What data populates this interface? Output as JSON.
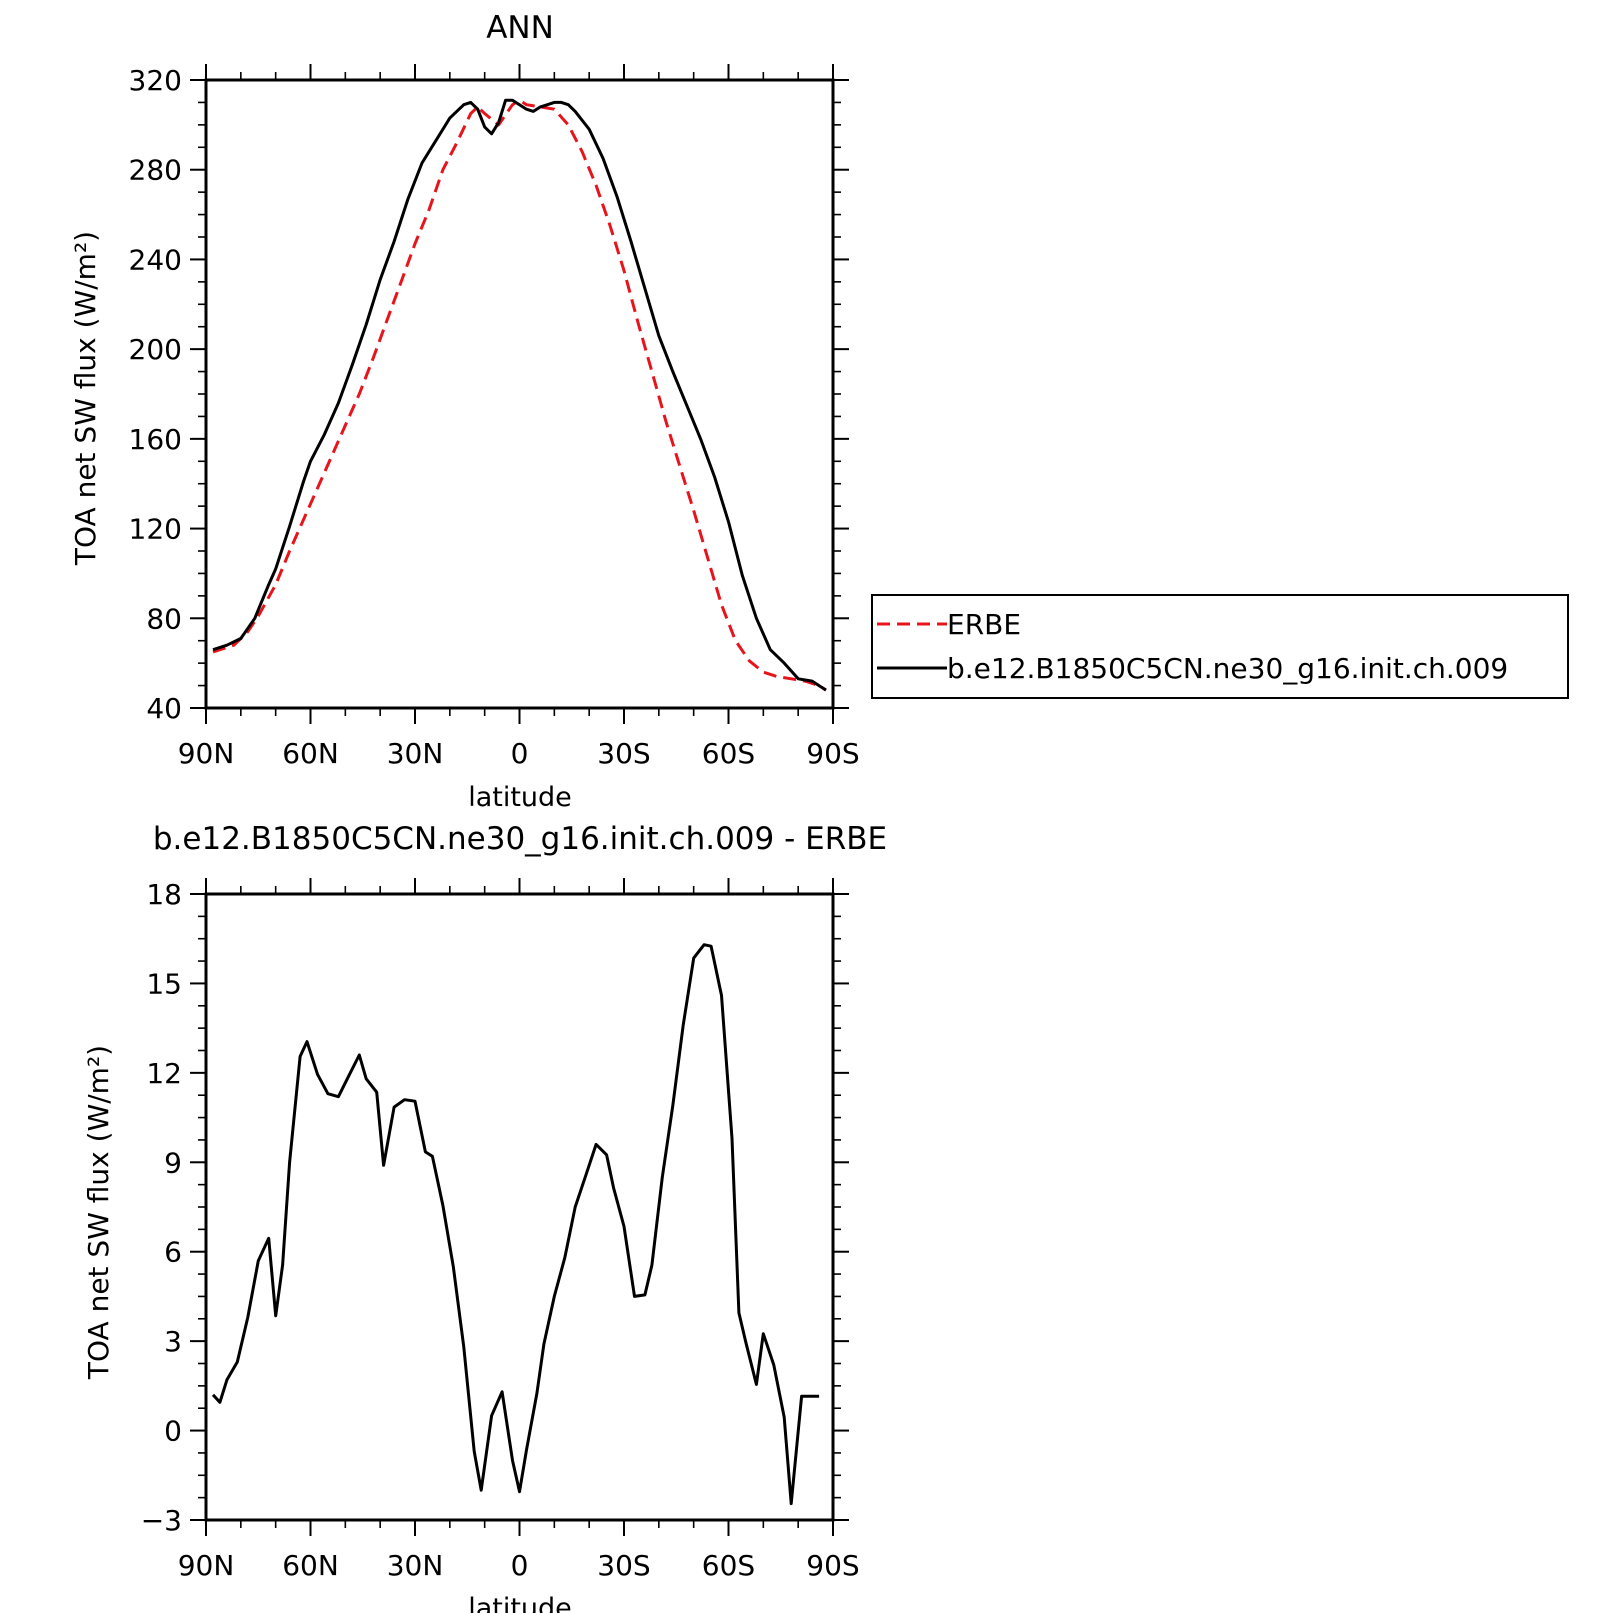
{
  "chart_data": [
    {
      "type": "line",
      "title": "ANN",
      "xlabel": "latitude",
      "ylabel": "TOA net SW flux (W/m²)",
      "xlim": [
        90,
        -90
      ],
      "ylim": [
        40,
        320
      ],
      "x_tick_values": [
        90,
        60,
        30,
        0,
        -30,
        -60,
        -90
      ],
      "x_tick_labels": [
        "90N",
        "60N",
        "30N",
        "0",
        "30S",
        "60S",
        "90S"
      ],
      "y_ticks": [
        40,
        80,
        120,
        160,
        200,
        240,
        280,
        320
      ],
      "legend": {
        "position": "right",
        "entries": [
          "ERBE",
          "b.e12.B1850C5CN.ne30_g16.init.ch.009"
        ]
      },
      "series": [
        {
          "name": "ERBE",
          "color": "#e8141c",
          "dash": "dashed",
          "x": [
            88,
            82,
            78,
            75,
            70,
            66,
            62,
            58,
            54,
            50,
            46,
            42,
            38,
            34,
            30,
            26,
            22,
            18,
            14,
            12,
            10,
            6,
            2,
            0,
            -2,
            -6,
            -10,
            -14,
            -18,
            -22,
            -26,
            -30,
            -34,
            -38,
            -42,
            -46,
            -50,
            -54,
            -58,
            -62,
            -66,
            -70,
            -74,
            -78,
            -82,
            -86,
            -88
          ],
          "y": [
            65,
            68,
            74,
            81,
            95,
            110,
            124,
            138,
            152,
            166,
            180,
            196,
            213,
            230,
            247,
            262,
            280,
            292,
            305,
            308,
            305,
            300,
            309,
            311,
            309,
            308,
            307,
            300,
            288,
            273,
            255,
            235,
            212,
            190,
            168,
            148,
            128,
            107,
            86,
            70,
            61,
            56,
            54,
            53,
            52,
            50,
            48
          ]
        },
        {
          "name": "b.e12.B1850C5CN.ne30_g16.init.ch.009",
          "color": "#000000",
          "dash": "solid",
          "x": [
            88,
            84,
            80,
            76,
            72,
            70,
            66,
            62,
            60,
            56,
            52,
            48,
            44,
            40,
            36,
            32,
            28,
            24,
            20,
            16,
            14,
            12,
            10,
            8,
            6,
            4,
            2,
            0,
            -2,
            -4,
            -6,
            -8,
            -10,
            -12,
            -14,
            -16,
            -20,
            -24,
            -28,
            -32,
            -36,
            -40,
            -44,
            -48,
            -52,
            -56,
            -60,
            -64,
            -68,
            -72,
            -76,
            -80,
            -84,
            -88
          ],
          "y": [
            66,
            68,
            71,
            80,
            95,
            102,
            121,
            141,
            150,
            162,
            176,
            193,
            211,
            231,
            248,
            267,
            283,
            293,
            303,
            309,
            310,
            307,
            299,
            296,
            301,
            311,
            311,
            309,
            307,
            306,
            308,
            309,
            310,
            310,
            309,
            306,
            298,
            285,
            268,
            248,
            227,
            206,
            190,
            175,
            160,
            143,
            123,
            99,
            80,
            66,
            60,
            53,
            52,
            48
          ]
        }
      ]
    },
    {
      "type": "line",
      "title": "b.e12.B1850C5CN.ne30_g16.init.ch.009 - ERBE",
      "xlabel": "latitude",
      "ylabel": "TOA net SW flux (W/m²)",
      "xlim": [
        90,
        -90
      ],
      "ylim": [
        -3,
        18
      ],
      "x_tick_values": [
        90,
        60,
        30,
        0,
        -30,
        -60,
        -90
      ],
      "x_tick_labels": [
        "90N",
        "60N",
        "30N",
        "0",
        "30S",
        "60S",
        "90S"
      ],
      "y_ticks": [
        -3,
        0,
        3,
        6,
        9,
        12,
        15,
        18
      ],
      "y_tick_labels": [
        "−3",
        "0",
        "3",
        "6",
        "9",
        "12",
        "15",
        "18"
      ],
      "series": [
        {
          "color": "#000000",
          "dash": "solid",
          "x": [
            88,
            86,
            84,
            81,
            78,
            75,
            72,
            70,
            68,
            66,
            63,
            61,
            58,
            55,
            52,
            49,
            46,
            44,
            41,
            39,
            36,
            33,
            30,
            27,
            25,
            22,
            19,
            16,
            13,
            11,
            8,
            5,
            2,
            0,
            -2,
            -5,
            -7,
            -10,
            -13,
            -16,
            -19,
            -22,
            -25,
            -27,
            -30,
            -33,
            -36,
            -38,
            -41,
            -44,
            -47,
            -50,
            -53,
            -55,
            -58,
            -61,
            -63,
            -65,
            -68,
            -70,
            -73,
            -76,
            -78,
            -81,
            -84,
            -86
          ],
          "y": [
            1.2,
            0.95,
            1.7,
            2.3,
            3.8,
            5.7,
            6.45,
            3.85,
            5.55,
            9.0,
            12.55,
            13.05,
            11.95,
            11.3,
            11.2,
            11.9,
            12.6,
            11.8,
            11.35,
            8.9,
            10.85,
            11.1,
            11.05,
            9.35,
            9.2,
            7.55,
            5.5,
            2.8,
            -0.7,
            -2.0,
            0.5,
            1.3,
            -1.0,
            -2.05,
            -0.65,
            1.25,
            2.9,
            4.5,
            5.8,
            7.5,
            8.55,
            9.6,
            9.25,
            8.15,
            6.85,
            4.5,
            4.55,
            5.55,
            8.5,
            10.9,
            13.6,
            15.85,
            16.3,
            16.25,
            14.6,
            9.8,
            3.95,
            2.95,
            1.55,
            3.25,
            2.2,
            0.45,
            -2.45,
            1.15,
            1.15,
            1.15
          ]
        }
      ]
    }
  ]
}
